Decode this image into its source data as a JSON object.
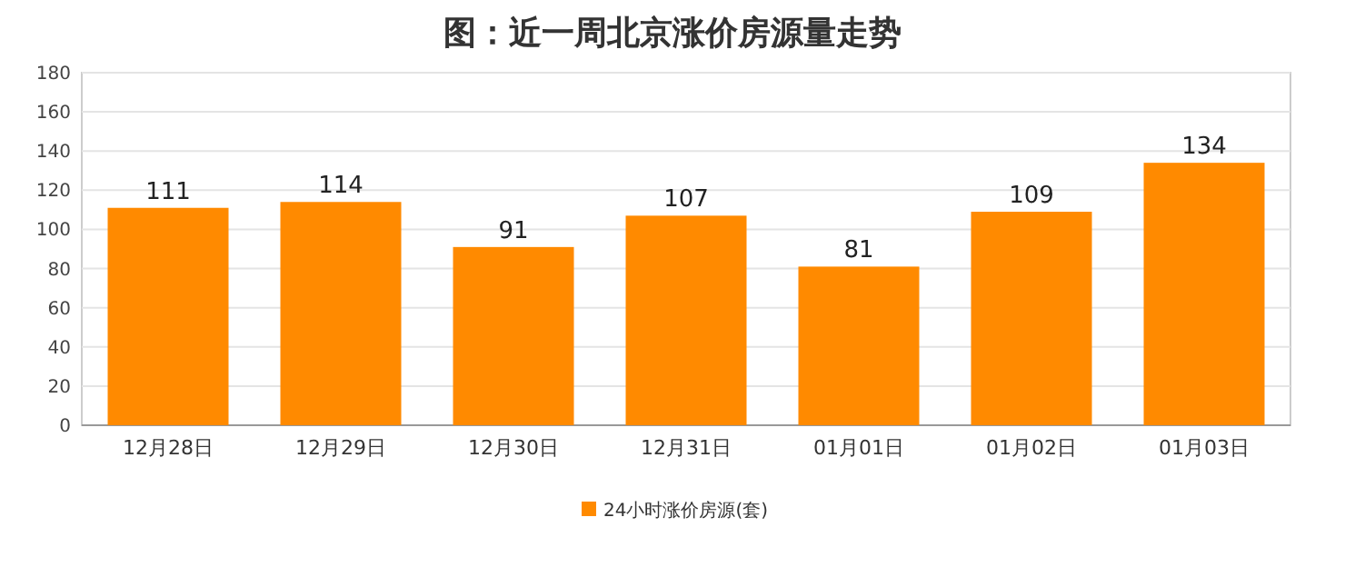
{
  "chart_data": {
    "type": "bar",
    "title": "图：近一周北京涨价房源量走势",
    "categories": [
      "12月28日",
      "12月29日",
      "12月30日",
      "12月31日",
      "01月01日",
      "01月02日",
      "01月03日"
    ],
    "series": [
      {
        "name": "24小时涨价房源(套)",
        "color": "#ff8a00",
        "values": [
          111,
          114,
          91,
          107,
          81,
          109,
          134
        ]
      }
    ],
    "ylim": [
      0,
      180
    ],
    "yticks": [
      0,
      20,
      40,
      60,
      80,
      100,
      120,
      140,
      160,
      180
    ],
    "grid": "y",
    "legend": "bottom",
    "data_labels": true
  }
}
